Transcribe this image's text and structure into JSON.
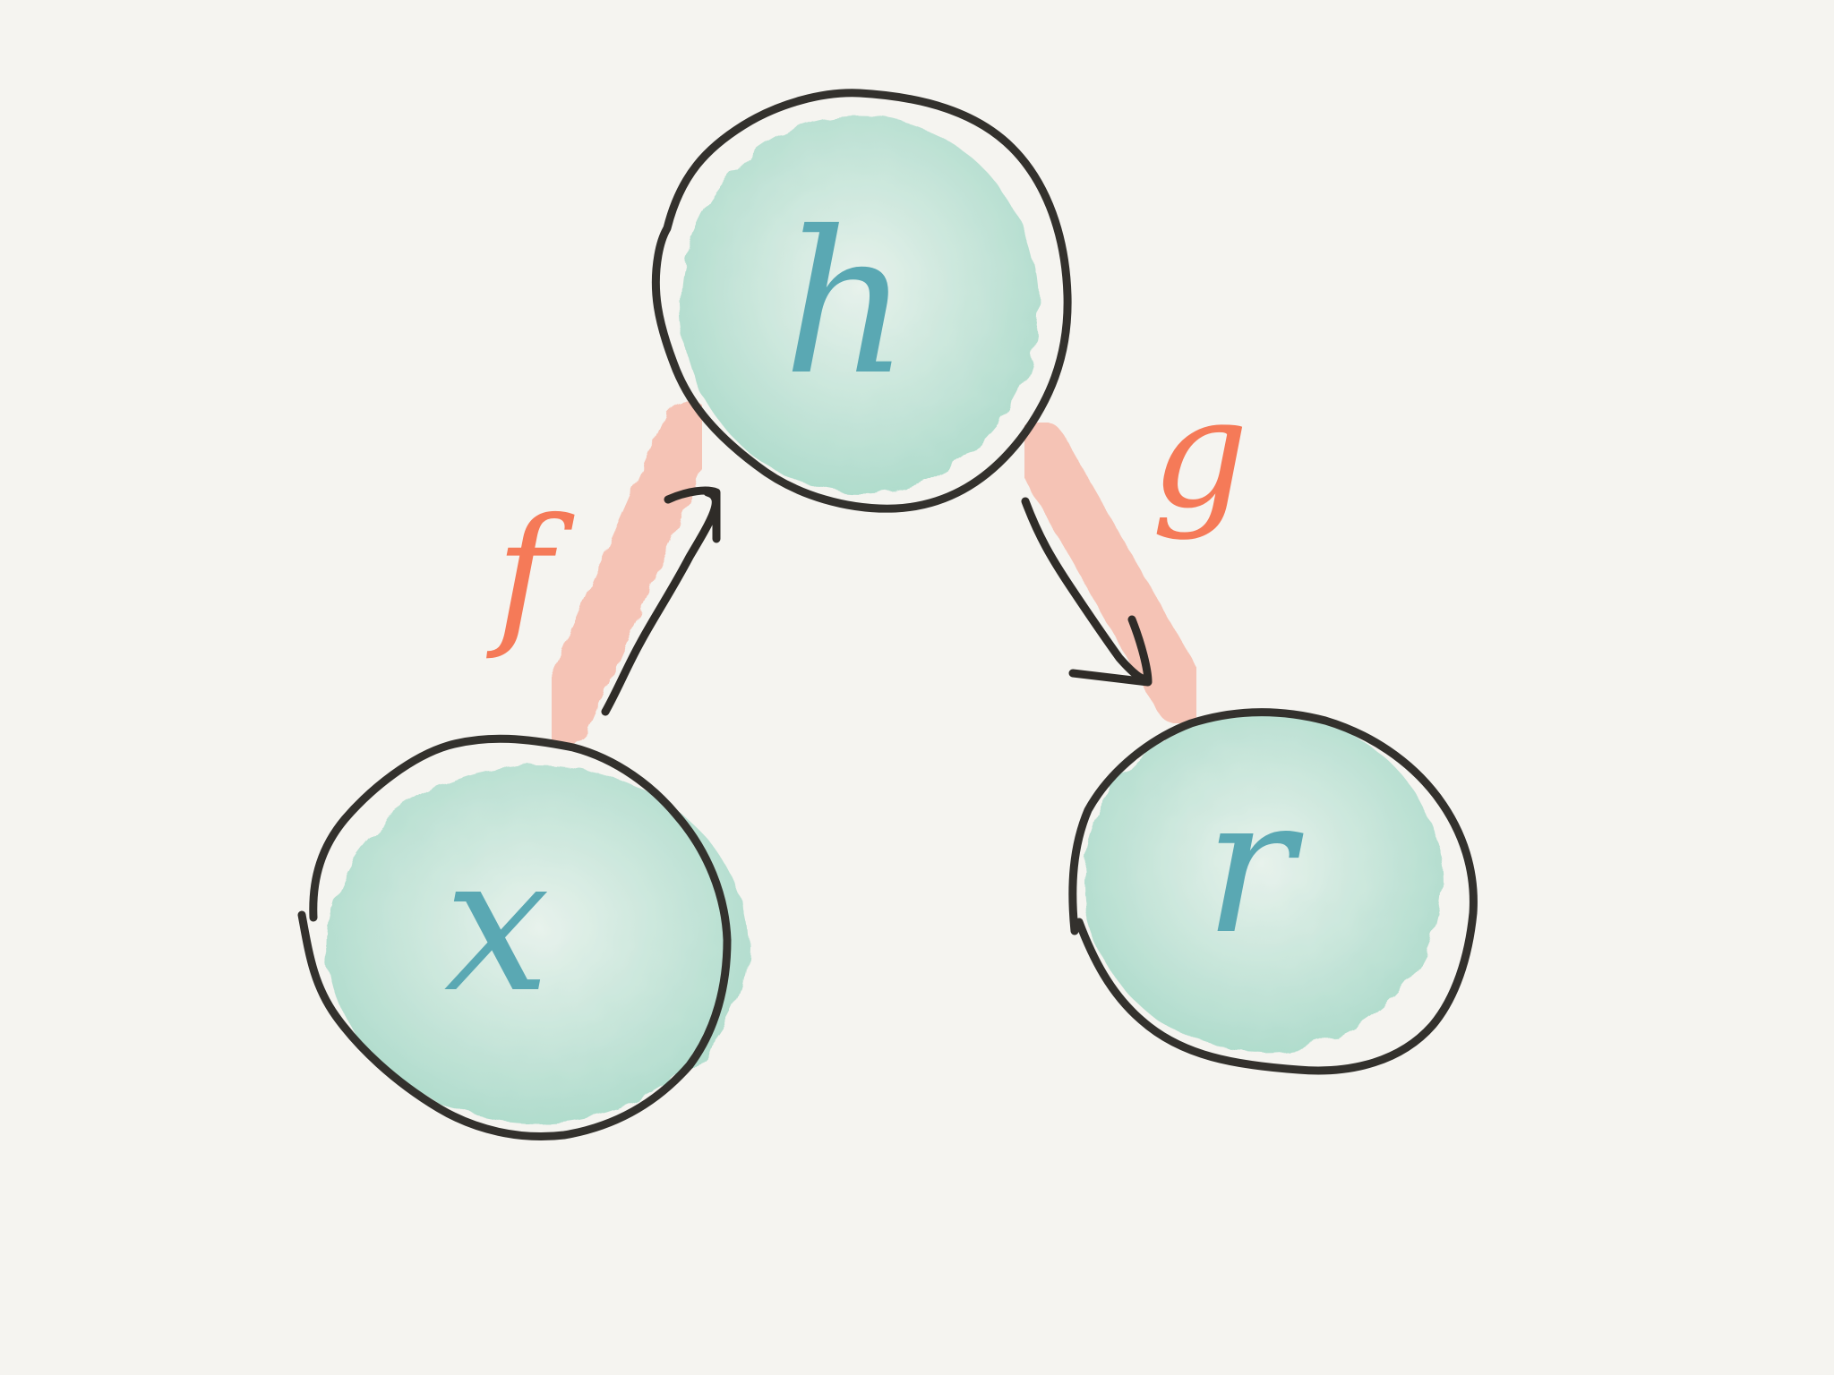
{
  "diagram": {
    "nodes": [
      {
        "id": "h",
        "label": "h"
      },
      {
        "id": "x",
        "label": "x"
      },
      {
        "id": "r",
        "label": "r"
      }
    ],
    "edges": [
      {
        "from": "x",
        "to": "h",
        "label": "f"
      },
      {
        "from": "h",
        "to": "r",
        "label": "g"
      }
    ]
  },
  "colors": {
    "background": "#f5f4f0",
    "node_fill": "#8fd1bb",
    "node_outline": "#33312d",
    "node_label": "#5aa8b3",
    "edge_highlight": "#f6a38e",
    "edge_label": "#f57a58",
    "arrow": "#2f2c28"
  }
}
